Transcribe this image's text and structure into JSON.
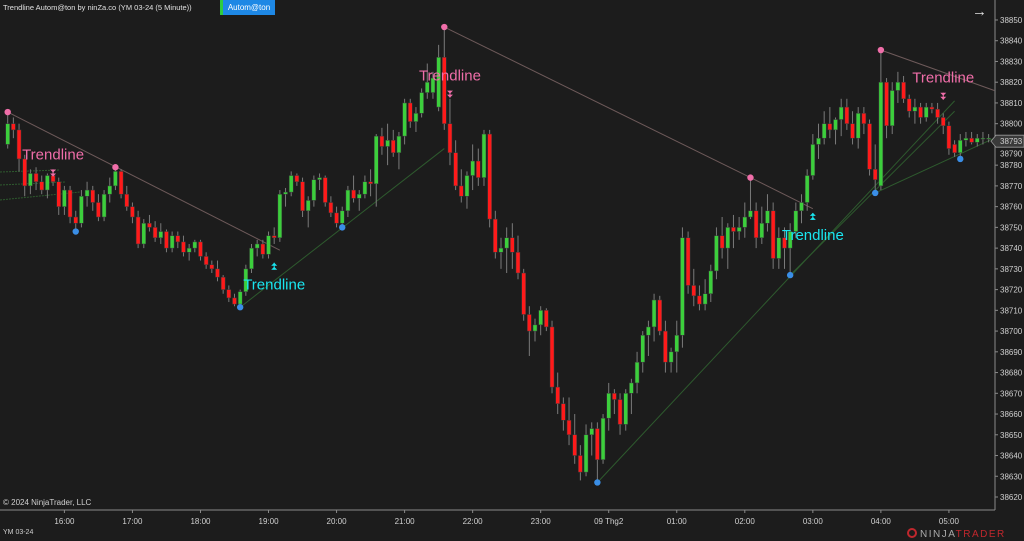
{
  "header": {
    "title": "Trendline Autom@ton by ninZa.co (YM 03-24 (5 Minute))",
    "strategy_button": "Autom@ton",
    "nav_icon": "arrow-right-icon"
  },
  "footer": {
    "copyright": "© 2024 NinjaTrader, LLC",
    "instrument": "YM 03-24",
    "logo_text": "NINJATRADER"
  },
  "colors": {
    "background": "#1c1c1c",
    "up_candle": "#3ccf3c",
    "down_candle": "#ff1a1a",
    "wick": "#7a7a7a",
    "resistance_line": "#6e5a5a",
    "support_line": "#2e5a2e",
    "pivot_high": "#f06ea9",
    "pivot_low": "#3a8ee6",
    "short_signal": "#f06ea9",
    "long_signal": "#19e6f0",
    "strategy_button": "#1e88e5"
  },
  "chart_data": {
    "type": "candlestick",
    "bar_interval": "5 Minute",
    "first_bar_time": "15:10",
    "ylim": [
      38615,
      38855
    ],
    "yticks": [
      38620,
      38630,
      38640,
      38650,
      38660,
      38670,
      38680,
      38690,
      38700,
      38710,
      38720,
      38730,
      38740,
      38750,
      38760,
      38770,
      38780,
      38790,
      38800,
      38810,
      38820,
      38830,
      38840,
      38850
    ],
    "xticks": [
      {
        "time": "16:00",
        "label": "16:00"
      },
      {
        "time": "17:00",
        "label": "17:00"
      },
      {
        "time": "18:00",
        "label": "18:00"
      },
      {
        "time": "19:00",
        "label": "19:00"
      },
      {
        "time": "20:00",
        "label": "20:00"
      },
      {
        "time": "21:00",
        "label": "21:00"
      },
      {
        "time": "22:00",
        "label": "22:00"
      },
      {
        "time": "23:00",
        "label": "23:00"
      },
      {
        "time": "24:00",
        "label": "09 Thg2"
      },
      {
        "time": "01:00",
        "label": "01:00"
      },
      {
        "time": "02:00",
        "label": "02:00"
      },
      {
        "time": "03:00",
        "label": "03:00"
      },
      {
        "time": "04:00",
        "label": "04:00"
      },
      {
        "time": "05:00",
        "label": "05:00"
      }
    ],
    "last_price": 38793,
    "ohlc": [
      [
        38790,
        38806,
        38788,
        38800
      ],
      [
        38800,
        38803,
        38793,
        38797
      ],
      [
        38797,
        38800,
        38777,
        38783
      ],
      [
        38783,
        38785,
        38765,
        38770
      ],
      [
        38770,
        38778,
        38766,
        38776
      ],
      [
        38776,
        38779,
        38768,
        38772
      ],
      [
        38772,
        38775,
        38766,
        38768
      ],
      [
        38768,
        38776,
        38764,
        38775
      ],
      [
        38775,
        38778,
        38770,
        38772
      ],
      [
        38772,
        38774,
        38756,
        38760
      ],
      [
        38760,
        38770,
        38756,
        38768
      ],
      [
        38768,
        38770,
        38752,
        38755
      ],
      [
        38755,
        38758,
        38748,
        38752
      ],
      [
        38752,
        38768,
        38750,
        38765
      ],
      [
        38765,
        38772,
        38760,
        38768
      ],
      [
        38768,
        38770,
        38758,
        38762
      ],
      [
        38762,
        38766,
        38753,
        38755
      ],
      [
        38755,
        38768,
        38753,
        38766
      ],
      [
        38766,
        38774,
        38762,
        38770
      ],
      [
        38770,
        38779,
        38768,
        38777
      ],
      [
        38777,
        38778,
        38764,
        38766
      ],
      [
        38766,
        38770,
        38758,
        38760
      ],
      [
        38760,
        38762,
        38752,
        38755
      ],
      [
        38755,
        38758,
        38740,
        38742
      ],
      [
        38742,
        38754,
        38740,
        38752
      ],
      [
        38752,
        38756,
        38748,
        38750
      ],
      [
        38750,
        38753,
        38743,
        38745
      ],
      [
        38745,
        38752,
        38742,
        38748
      ],
      [
        38748,
        38749,
        38738,
        38740
      ],
      [
        38740,
        38748,
        38738,
        38746
      ],
      [
        38746,
        38748,
        38740,
        38743
      ],
      [
        38743,
        38746,
        38736,
        38738
      ],
      [
        38738,
        38742,
        38734,
        38740
      ],
      [
        38740,
        38744,
        38738,
        38743
      ],
      [
        38743,
        38744,
        38734,
        38736
      ],
      [
        38736,
        38738,
        38730,
        38732
      ],
      [
        38732,
        38734,
        38728,
        38730
      ],
      [
        38730,
        38734,
        38724,
        38726
      ],
      [
        38726,
        38727,
        38718,
        38720
      ],
      [
        38720,
        38722,
        38714,
        38716
      ],
      [
        38716,
        38718,
        38712,
        38713
      ],
      [
        38713,
        38720,
        38711.5,
        38719
      ],
      [
        38719,
        38732,
        38717,
        38730
      ],
      [
        38730,
        38742,
        38728,
        38740
      ],
      [
        38740,
        38744,
        38736,
        38742
      ],
      [
        38742,
        38744,
        38735,
        38737
      ],
      [
        38737,
        38748,
        38735,
        38746
      ],
      [
        38746,
        38750,
        38742,
        38745
      ],
      [
        38745,
        38768,
        38743,
        38766
      ],
      [
        38766,
        38769,
        38760,
        38767
      ],
      [
        38767,
        38777,
        38765,
        38775
      ],
      [
        38775,
        38776,
        38770,
        38772
      ],
      [
        38772,
        38774,
        38755,
        38758
      ],
      [
        38758,
        38765,
        38750,
        38763
      ],
      [
        38763,
        38775,
        38760,
        38773
      ],
      [
        38773,
        38776,
        38768,
        38774
      ],
      [
        38774,
        38775,
        38760,
        38762
      ],
      [
        38762,
        38765,
        38755,
        38757
      ],
      [
        38757,
        38760,
        38750,
        38752
      ],
      [
        38752,
        38760,
        38750,
        38758
      ],
      [
        38758,
        38770,
        38755,
        38768
      ],
      [
        38768,
        38775,
        38762,
        38764
      ],
      [
        38764,
        38768,
        38758,
        38766
      ],
      [
        38766,
        38775,
        38764,
        38772
      ],
      [
        38772,
        38778,
        38765,
        38771
      ],
      [
        38771,
        38795,
        38760,
        38794
      ],
      [
        38794,
        38798,
        38785,
        38789
      ],
      [
        38789,
        38800,
        38780,
        38792
      ],
      [
        38792,
        38797,
        38784,
        38786
      ],
      [
        38786,
        38796,
        38778,
        38794
      ],
      [
        38794,
        38812,
        38790,
        38810
      ],
      [
        38810,
        38812,
        38798,
        38801
      ],
      [
        38801,
        38808,
        38796,
        38805
      ],
      [
        38805,
        38817,
        38803,
        38815
      ],
      [
        38815,
        38829,
        38812,
        38820
      ],
      [
        38815,
        38825,
        38812,
        38822
      ],
      [
        38808,
        38838,
        38806,
        38832
      ],
      [
        38832,
        38846.6,
        38797,
        38800
      ],
      [
        38800,
        38812,
        38780,
        38786
      ],
      [
        38786,
        38792,
        38768,
        38770
      ],
      [
        38770,
        38778,
        38762,
        38765
      ],
      [
        38765,
        38777,
        38759,
        38775
      ],
      [
        38775,
        38790,
        38768,
        38782
      ],
      [
        38782,
        38788,
        38770,
        38774
      ],
      [
        38774,
        38797,
        38770,
        38795
      ],
      [
        38795,
        38797,
        38750,
        38754
      ],
      [
        38754,
        38758,
        38735,
        38738
      ],
      [
        38738,
        38745,
        38730,
        38740
      ],
      [
        38740,
        38750,
        38728,
        38745
      ],
      [
        38745,
        38752,
        38730,
        38738
      ],
      [
        38738,
        38746,
        38725,
        38728
      ],
      [
        38728,
        38730,
        38705,
        38708
      ],
      [
        38708,
        38712,
        38688,
        38700
      ],
      [
        38700,
        38706,
        38695,
        38703
      ],
      [
        38703,
        38712,
        38698,
        38710
      ],
      [
        38710,
        38711,
        38700,
        38702
      ],
      [
        38702,
        38705,
        38670,
        38673
      ],
      [
        38673,
        38680,
        38660,
        38665
      ],
      [
        38665,
        38668,
        38652,
        38657
      ],
      [
        38657,
        38668,
        38645,
        38650
      ],
      [
        38650,
        38660,
        38636,
        38640
      ],
      [
        38640,
        38645,
        38628,
        38632
      ],
      [
        38632,
        38655,
        38630,
        38650
      ],
      [
        38650,
        38656,
        38640,
        38653
      ],
      [
        38653,
        38656,
        38627,
        38638
      ],
      [
        38638,
        38660,
        38636,
        38658
      ],
      [
        38658,
        38675,
        38652,
        38670
      ],
      [
        38670,
        38672,
        38660,
        38667
      ],
      [
        38667,
        38670,
        38650,
        38655
      ],
      [
        38655,
        38672,
        38652,
        38670
      ],
      [
        38670,
        38677,
        38660,
        38675
      ],
      [
        38675,
        38690,
        38670,
        38685
      ],
      [
        38685,
        38700,
        38680,
        38698
      ],
      [
        38698,
        38705,
        38688,
        38702
      ],
      [
        38702,
        38718,
        38695,
        38715
      ],
      [
        38715,
        38717,
        38698,
        38700
      ],
      [
        38700,
        38705,
        38680,
        38685
      ],
      [
        38685,
        38692,
        38680,
        38690
      ],
      [
        38690,
        38705,
        38680,
        38698
      ],
      [
        38698,
        38750,
        38692,
        38745
      ],
      [
        38745,
        38748,
        38718,
        38722
      ],
      [
        38722,
        38730,
        38712,
        38717
      ],
      [
        38717,
        38722,
        38710,
        38713
      ],
      [
        38713,
        38725,
        38710,
        38718
      ],
      [
        38718,
        38732,
        38714,
        38729
      ],
      [
        38729,
        38750,
        38725,
        38746
      ],
      [
        38746,
        38755,
        38735,
        38740
      ],
      [
        38740,
        38752,
        38730,
        38750
      ],
      [
        38750,
        38756,
        38740,
        38748
      ],
      [
        38748,
        38755,
        38744,
        38750
      ],
      [
        38750,
        38762,
        38745,
        38755
      ],
      [
        38755,
        38774,
        38754,
        38758
      ],
      [
        38758,
        38762,
        38740,
        38745
      ],
      [
        38745,
        38760,
        38742,
        38752
      ],
      [
        38752,
        38766,
        38748,
        38758
      ],
      [
        38758,
        38762,
        38730,
        38735
      ],
      [
        38735,
        38750,
        38730,
        38745
      ],
      [
        38745,
        38750,
        38730,
        38740
      ],
      [
        38740,
        38752,
        38727,
        38748
      ],
      [
        38748,
        38762,
        38745,
        38758
      ],
      [
        38758,
        38766,
        38752,
        38762
      ],
      [
        38762,
        38778,
        38758,
        38775
      ],
      [
        38775,
        38795,
        38773,
        38790
      ],
      [
        38790,
        38800,
        38783,
        38793
      ],
      [
        38793,
        38806,
        38790,
        38800
      ],
      [
        38800,
        38808,
        38793,
        38797
      ],
      [
        38797,
        38803,
        38790,
        38802
      ],
      [
        38802,
        38812,
        38794,
        38808
      ],
      [
        38808,
        38812,
        38797,
        38800
      ],
      [
        38800,
        38806,
        38790,
        38793
      ],
      [
        38793,
        38808,
        38788,
        38805
      ],
      [
        38805,
        38808,
        38795,
        38800
      ],
      [
        38800,
        38802,
        38775,
        38778
      ],
      [
        38778,
        38790,
        38766.6,
        38773
      ],
      [
        38770,
        38835.5,
        38768,
        38820
      ],
      [
        38820,
        38822,
        38793,
        38799
      ],
      [
        38799,
        38820,
        38795,
        38816
      ],
      [
        38816,
        38825,
        38810,
        38820
      ],
      [
        38820,
        38823,
        38810,
        38812
      ],
      [
        38812,
        38814,
        38803,
        38806
      ],
      [
        38806,
        38812,
        38800,
        38808
      ],
      [
        38808,
        38810,
        38800,
        38803
      ],
      [
        38803,
        38810,
        38801,
        38808
      ],
      [
        38808,
        38810,
        38805,
        38807
      ],
      [
        38807,
        38810,
        38800,
        38803
      ],
      [
        38803,
        38805,
        38795,
        38799
      ],
      [
        38799,
        38801,
        38785,
        38788
      ],
      [
        38790,
        38792,
        38784,
        38786
      ],
      [
        38786,
        38795,
        38783,
        38792
      ],
      [
        38792,
        38796,
        38789,
        38793
      ],
      [
        38793,
        38796,
        38790,
        38791
      ],
      [
        38791,
        38795,
        38789,
        38793
      ],
      [
        38793,
        38796,
        38790,
        38793
      ],
      [
        38793,
        38795,
        38791,
        38793
      ]
    ],
    "resistance_lines": [
      {
        "from": {
          "time": "15:10",
          "price": 38805.6
        },
        "to": {
          "time": "19:10",
          "price": 38739
        }
      },
      {
        "from": {
          "time": "21:35",
          "price": 38846.6
        },
        "to": {
          "time": "02:05",
          "price": 38774
        }
      },
      {
        "from": {
          "time": "02:05",
          "price": 38774
        },
        "to": {
          "time": "03:00",
          "price": 38759
        }
      },
      {
        "from": {
          "time": "04:00",
          "price": 38835.5
        },
        "to": {
          "time": "05:40",
          "price": 38816
        }
      }
    ],
    "support_lines": [
      {
        "from": {
          "time": "18:35",
          "price": 38711.5
        },
        "to": {
          "time": "21:35",
          "price": 38788
        }
      },
      {
        "from": {
          "time": "23:50",
          "price": 38627
        },
        "to": {
          "time": "05:05",
          "price": 38811
        }
      },
      {
        "from": {
          "time": "02:40",
          "price": 38727
        },
        "to": {
          "time": "05:05",
          "price": 38806
        }
      },
      {
        "from": {
          "time": "03:55",
          "price": 38766.6
        },
        "to": {
          "time": "05:40",
          "price": 38793
        }
      }
    ],
    "pivot_highs": [
      {
        "time": "15:10",
        "price": 38805.6
      },
      {
        "time": "16:45",
        "price": 38779
      },
      {
        "time": "21:35",
        "price": 38846.6
      },
      {
        "time": "02:05",
        "price": 38774
      },
      {
        "time": "04:00",
        "price": 38835.5
      }
    ],
    "pivot_lows": [
      {
        "time": "16:10",
        "price": 38748
      },
      {
        "time": "18:35",
        "price": 38711.5
      },
      {
        "time": "20:05",
        "price": 38750
      },
      {
        "time": "23:50",
        "price": 38627
      },
      {
        "time": "02:40",
        "price": 38727
      },
      {
        "time": "03:55",
        "price": 38766.6
      },
      {
        "time": "05:10",
        "price": 38783
      }
    ],
    "signals": [
      {
        "direction": "short",
        "label": "Trendline",
        "time": "15:50",
        "price": 38776
      },
      {
        "direction": "long",
        "label": "Trendline",
        "time": "19:05",
        "price": 38732
      },
      {
        "direction": "short",
        "label": "Trendline",
        "time": "21:40",
        "price": 38814
      },
      {
        "direction": "long",
        "label": "Trendline",
        "time": "03:00",
        "price": 38756
      },
      {
        "direction": "short",
        "label": "Trendline",
        "time": "04:55",
        "price": 38813
      }
    ]
  }
}
